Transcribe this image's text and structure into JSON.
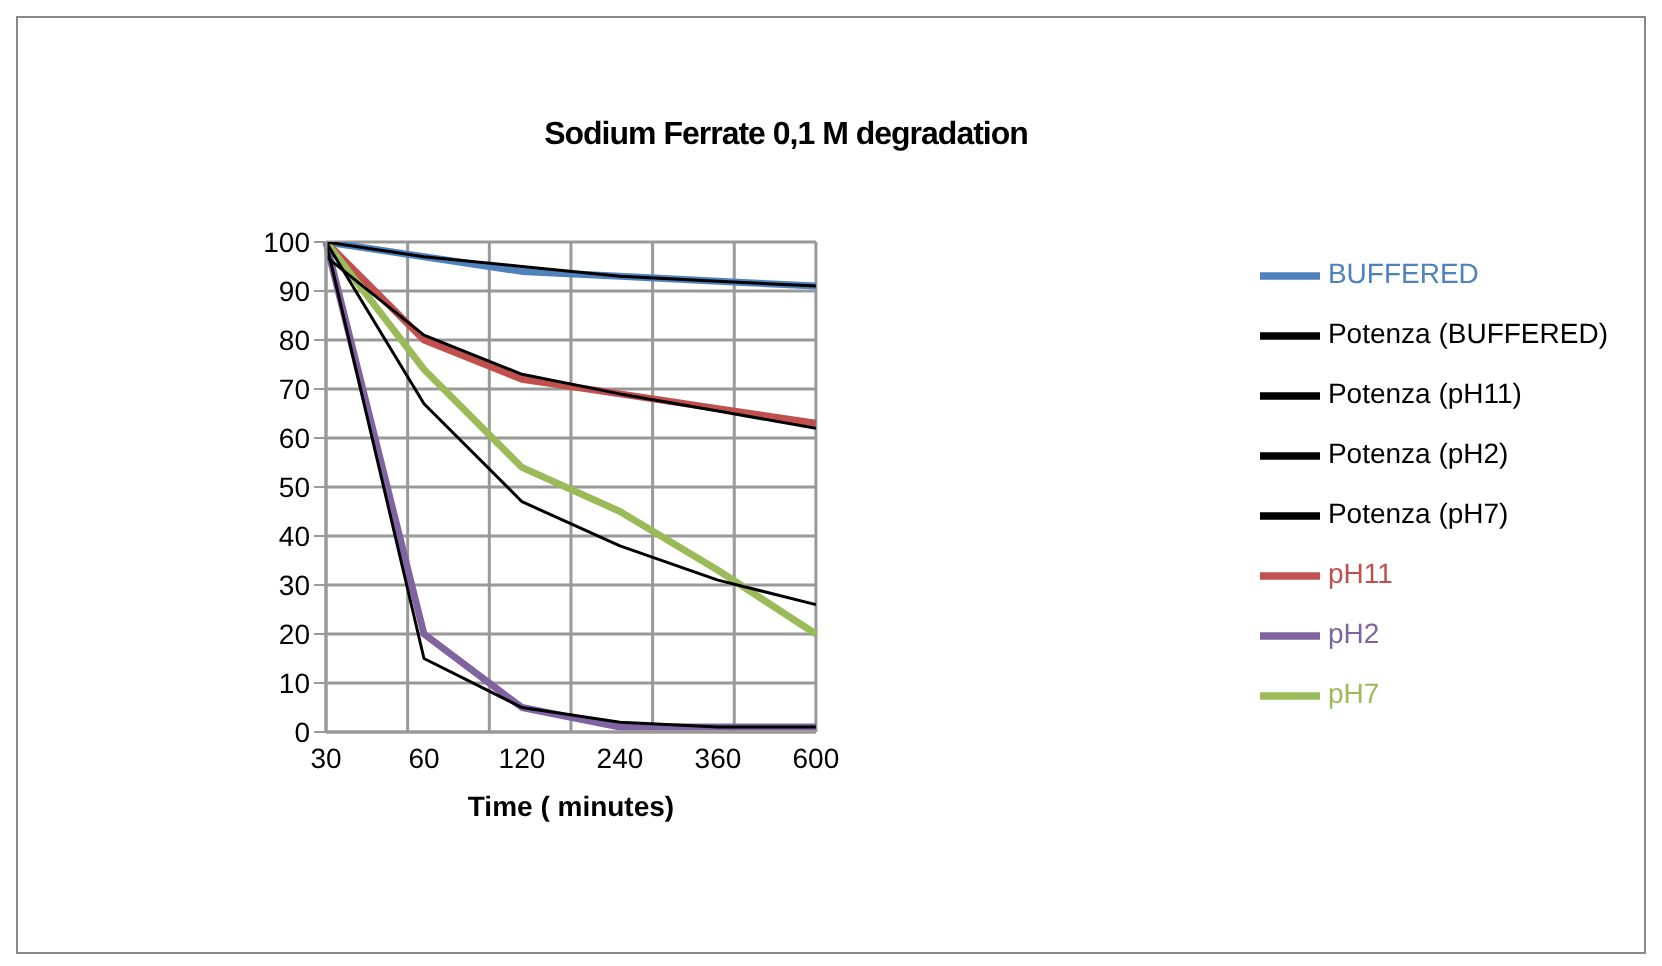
{
  "chart_data": {
    "type": "line",
    "title": "Sodium Ferrate 0,1 M degradation",
    "xlabel": "Time ( minutes)",
    "categories": [
      "30",
      "60",
      "120",
      "240",
      "360",
      "600"
    ],
    "ylim": [
      0,
      100
    ],
    "yticks": [
      0,
      10,
      20,
      30,
      40,
      50,
      60,
      70,
      80,
      90,
      100
    ],
    "grid": true,
    "legend": "right",
    "marker": "none",
    "line_style": "solid",
    "series": [
      {
        "name": "BUFFERED",
        "color": "#4f81bd",
        "values": [
          100,
          97,
          94,
          93,
          92,
          91
        ]
      },
      {
        "name": "pH11",
        "color": "#c0504d",
        "values": [
          100,
          80,
          72,
          69,
          66,
          63
        ]
      },
      {
        "name": "pH7",
        "color": "#9bbb59",
        "values": [
          100,
          74,
          54,
          45,
          33,
          20
        ]
      },
      {
        "name": "pH2",
        "color": "#8064a2",
        "values": [
          100,
          20,
          5,
          1,
          1,
          1
        ]
      },
      {
        "name": "Potenza (BUFFERED)",
        "color": "#000000",
        "values": [
          100,
          97,
          95,
          93,
          92,
          91
        ]
      },
      {
        "name": "Potenza (pH11)",
        "color": "#000000",
        "values": [
          97,
          81,
          73,
          69,
          65.5,
          62
        ]
      },
      {
        "name": "Potenza (pH7)",
        "color": "#000000",
        "values": [
          100,
          67,
          47,
          38,
          31,
          26
        ]
      },
      {
        "name": "Potenza (pH2)",
        "color": "#000000",
        "values": [
          100,
          15,
          5,
          2,
          1,
          1
        ]
      }
    ]
  }
}
